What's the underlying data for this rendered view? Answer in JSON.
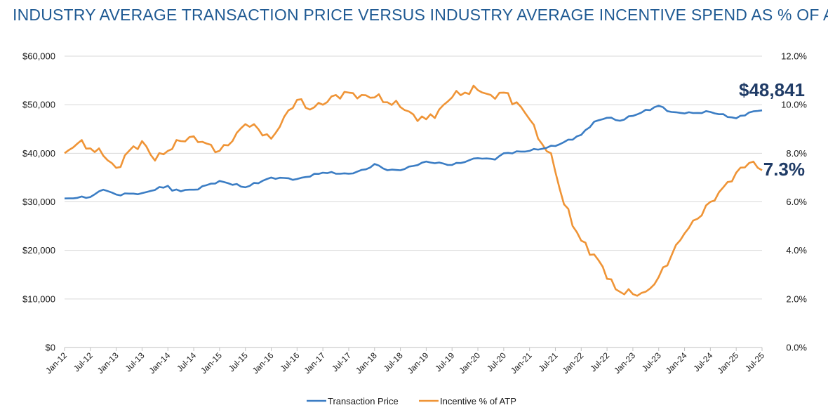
{
  "title": "INDUSTRY AVERAGE TRANSACTION PRICE VERSUS INDUSTRY AVERAGE INCENTIVE SPEND AS % OF ATP",
  "colors": {
    "title": "#1f5a93",
    "atp": "#3b7dc4",
    "incentive": "#ef9436",
    "callout": "#1f3b66",
    "grid": "#d9d9d9"
  },
  "chart_data": {
    "type": "line",
    "title": "INDUSTRY AVERAGE TRANSACTION PRICE VERSUS INDUSTRY AVERAGE INCENTIVE SPEND AS % OF ATP",
    "left_axis": {
      "ylim": [
        0,
        60000
      ],
      "ticks": [
        "$0",
        "$10,000",
        "$20,000",
        "$30,000",
        "$40,000",
        "$50,000",
        "$60,000"
      ]
    },
    "right_axis": {
      "ylim": [
        0,
        12
      ],
      "ticks": [
        "0.0%",
        "2.0%",
        "4.0%",
        "6.0%",
        "8.0%",
        "10.0%",
        "12.0%"
      ]
    },
    "x_ticks": [
      "Jan-12",
      "Jul-12",
      "Jan-13",
      "Jul-13",
      "Jan-14",
      "Jul-14",
      "Jan-15",
      "Jul-15",
      "Jan-16",
      "Jul-16",
      "Jan-17",
      "Jul-17",
      "Jan-18",
      "Jul-18",
      "Jan-19",
      "Jul-19",
      "Jan-20",
      "Jul-20",
      "Jan-21",
      "Jul-21",
      "Jan-22",
      "Jul-22",
      "Jan-23",
      "Jul-23",
      "Jan-24",
      "Jul-24",
      "Jan-25",
      "Jul-25"
    ],
    "x_start": "Jan-12",
    "months": 163,
    "series": [
      {
        "name": "Transaction Price",
        "axis": "left",
        "anchors": [
          [
            0,
            30700
          ],
          [
            6,
            31000
          ],
          [
            9,
            32500
          ],
          [
            12,
            31500
          ],
          [
            18,
            31800
          ],
          [
            24,
            33300
          ],
          [
            25,
            32300
          ],
          [
            30,
            32500
          ],
          [
            36,
            34300
          ],
          [
            42,
            33000
          ],
          [
            48,
            35000
          ],
          [
            54,
            34700
          ],
          [
            60,
            36000
          ],
          [
            66,
            35800
          ],
          [
            70,
            36700
          ],
          [
            72,
            37800
          ],
          [
            75,
            36500
          ],
          [
            78,
            36500
          ],
          [
            84,
            38300
          ],
          [
            90,
            37600
          ],
          [
            96,
            39000
          ],
          [
            100,
            38700
          ],
          [
            102,
            40000
          ],
          [
            108,
            40500
          ],
          [
            114,
            41500
          ],
          [
            120,
            43800
          ],
          [
            123,
            46500
          ],
          [
            126,
            47300
          ],
          [
            129,
            46700
          ],
          [
            132,
            47700
          ],
          [
            138,
            49800
          ],
          [
            141,
            48500
          ],
          [
            144,
            48200
          ],
          [
            150,
            48500
          ],
          [
            156,
            47200
          ],
          [
            159,
            48400
          ],
          [
            162,
            48841
          ]
        ]
      },
      {
        "name": "Incentive % of ATP",
        "axis": "right",
        "anchors": [
          [
            0,
            8.0
          ],
          [
            3,
            8.4
          ],
          [
            6,
            8.2
          ],
          [
            9,
            7.9
          ],
          [
            12,
            7.4
          ],
          [
            15,
            8.1
          ],
          [
            18,
            8.5
          ],
          [
            21,
            7.7
          ],
          [
            24,
            8.1
          ],
          [
            27,
            8.5
          ],
          [
            30,
            8.7
          ],
          [
            33,
            8.4
          ],
          [
            36,
            8.1
          ],
          [
            39,
            8.5
          ],
          [
            42,
            9.2
          ],
          [
            45,
            9.0
          ],
          [
            48,
            8.6
          ],
          [
            51,
            9.5
          ],
          [
            54,
            10.2
          ],
          [
            57,
            9.8
          ],
          [
            60,
            10.0
          ],
          [
            63,
            10.4
          ],
          [
            66,
            10.5
          ],
          [
            69,
            10.4
          ],
          [
            72,
            10.3
          ],
          [
            75,
            10.1
          ],
          [
            78,
            9.9
          ],
          [
            81,
            9.6
          ],
          [
            84,
            9.4
          ],
          [
            87,
            9.8
          ],
          [
            90,
            10.3
          ],
          [
            93,
            10.5
          ],
          [
            96,
            10.6
          ],
          [
            99,
            10.4
          ],
          [
            102,
            10.5
          ],
          [
            105,
            10.1
          ],
          [
            108,
            9.4
          ],
          [
            110,
            8.6
          ],
          [
            113,
            8.0
          ],
          [
            116,
            5.9
          ],
          [
            120,
            4.4
          ],
          [
            124,
            3.6
          ],
          [
            128,
            2.4
          ],
          [
            132,
            2.2
          ],
          [
            135,
            2.3
          ],
          [
            138,
            2.9
          ],
          [
            141,
            3.8
          ],
          [
            144,
            4.7
          ],
          [
            147,
            5.3
          ],
          [
            150,
            6.0
          ],
          [
            153,
            6.6
          ],
          [
            156,
            7.2
          ],
          [
            159,
            7.6
          ],
          [
            162,
            7.3
          ]
        ]
      }
    ],
    "end_labels": {
      "atp": "$48,841",
      "incentive": "7.3%"
    },
    "legend": {
      "placement": "bottom-center",
      "items": [
        "Transaction Price",
        "Incentive % of ATP"
      ]
    }
  }
}
